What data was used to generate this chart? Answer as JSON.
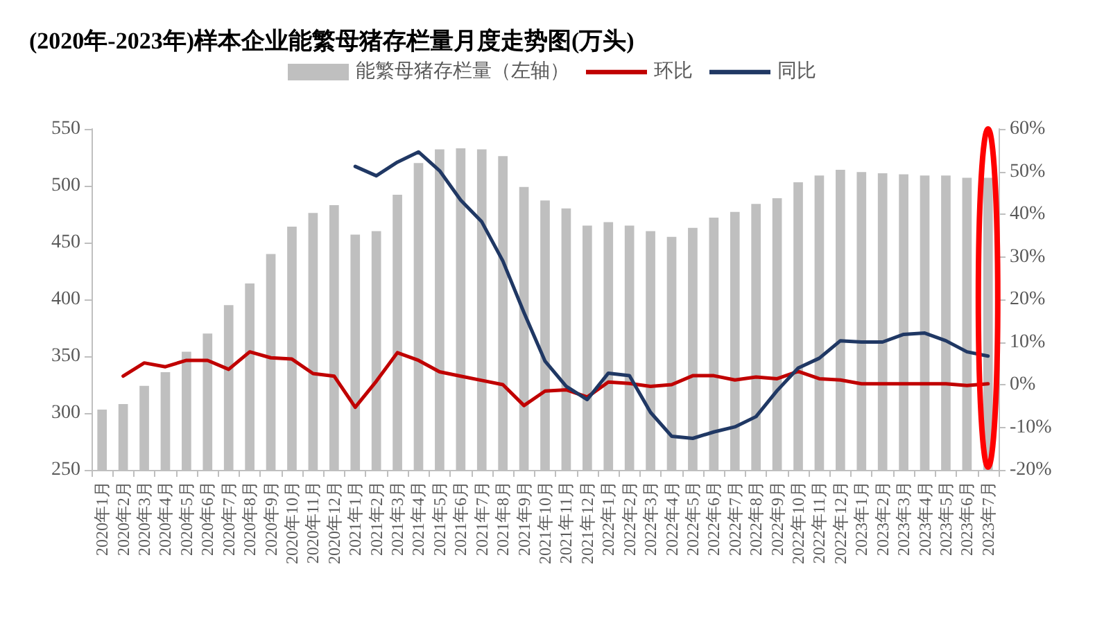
{
  "chart_data": {
    "type": "bar",
    "title": "(2020年-2023年)样本企业能繁母猪存栏量月度走势图(万头)",
    "categories": [
      "2020年1月",
      "2020年2月",
      "2020年3月",
      "2020年4月",
      "2020年5月",
      "2020年6月",
      "2020年7月",
      "2020年8月",
      "2020年9月",
      "2020年10月",
      "2020年11月",
      "2020年12月",
      "2021年1月",
      "2021年2月",
      "2021年3月",
      "2021年4月",
      "2021年5月",
      "2021年6月",
      "2021年7月",
      "2021年8月",
      "2021年9月",
      "2021年10月",
      "2021年11月",
      "2021年12月",
      "2022年1月",
      "2022年2月",
      "2022年3月",
      "2022年4月",
      "2022年5月",
      "2022年6月",
      "2022年7月",
      "2022年8月",
      "2022年9月",
      "2022年10月",
      "2022年11月",
      "2022年12月",
      "2023年1月",
      "2023年2月",
      "2023年3月",
      "2023年4月",
      "2023年5月",
      "2023年6月",
      "2023年7月"
    ],
    "series": [
      {
        "name": "能繁母猪存栏量（左轴）",
        "color": "#bfbfbf",
        "values": [
          303,
          308,
          324,
          336,
          354,
          370,
          395,
          414,
          440,
          464,
          476,
          483,
          457,
          460,
          492,
          520,
          532,
          533,
          532,
          526,
          499,
          487,
          480,
          465,
          468,
          465,
          460,
          455,
          463,
          472,
          477,
          484,
          489,
          503,
          509,
          514,
          512,
          511,
          510,
          509,
          509,
          507,
          507
        ]
      },
      {
        "name": "环比",
        "type": "line",
        "axis": "y2",
        "color": "#c00000",
        "values": [
          null,
          2.0,
          5.1,
          4.2,
          5.7,
          5.7,
          3.6,
          7.7,
          6.3,
          6.0,
          2.6,
          2.0,
          -5.3,
          0.8,
          7.5,
          5.7,
          3.0,
          2.0,
          1.0,
          0.0,
          -4.9,
          -1.5,
          -1.2,
          -2.9,
          0.6,
          0.3,
          -0.4,
          0.0,
          2.1,
          2.1,
          1.1,
          1.8,
          1.4,
          3.1,
          1.4,
          1.1,
          0.2,
          0.2,
          0.2,
          0.2,
          0.2,
          -0.2,
          0.2
        ]
      },
      {
        "name": "同比",
        "type": "line",
        "axis": "y2",
        "color": "#203864",
        "values": [
          null,
          null,
          null,
          null,
          null,
          null,
          null,
          null,
          null,
          null,
          null,
          null,
          51.2,
          49.0,
          52.2,
          54.6,
          50.2,
          43.3,
          38.2,
          29.0,
          16.9,
          5.5,
          -0.4,
          -3.5,
          2.7,
          2.1,
          -6.5,
          -12.1,
          -12.6,
          -11.1,
          -9.9,
          -7.5,
          -1.4,
          3.9,
          6.2,
          10.3,
          10.0,
          10.0,
          11.8,
          12.1,
          10.3,
          7.7,
          6.7
        ]
      }
    ],
    "ylim": [
      250,
      550
    ],
    "yticks": [
      250,
      300,
      350,
      400,
      450,
      500,
      550
    ],
    "y2lim": [
      -20,
      60
    ],
    "y2ticks": [
      {
        "value": -20,
        "label": "-20%"
      },
      {
        "value": -10,
        "label": "-10%"
      },
      {
        "value": 0,
        "label": "0%"
      },
      {
        "value": 10,
        "label": "10%"
      },
      {
        "value": 20,
        "label": "20%"
      },
      {
        "value": 30,
        "label": "30%"
      },
      {
        "value": 40,
        "label": "40%"
      },
      {
        "value": 50,
        "label": "50%"
      },
      {
        "value": 60,
        "label": "60%"
      }
    ],
    "legend": "top",
    "grid": false,
    "marker": "none",
    "line_style": "solid"
  }
}
